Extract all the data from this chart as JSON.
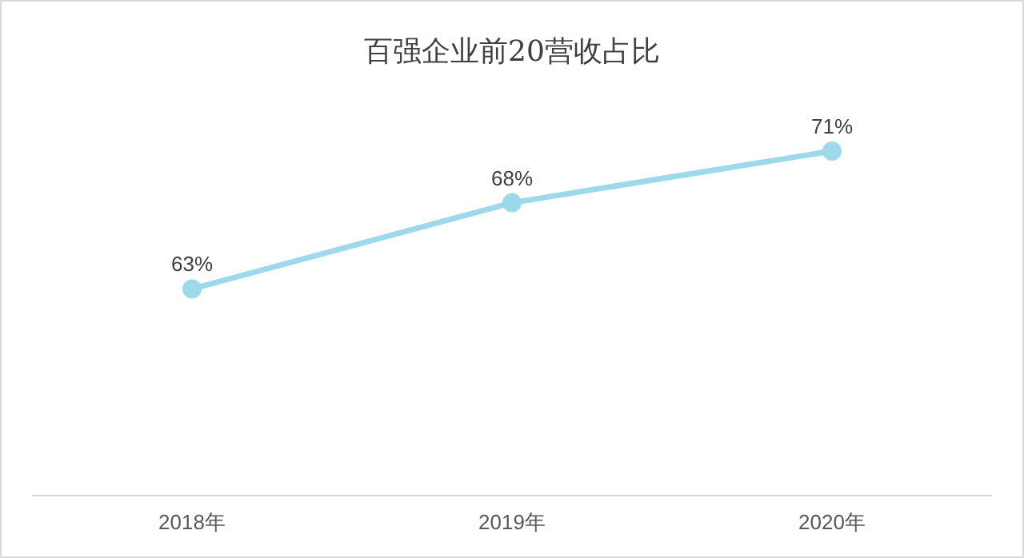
{
  "chart_data": {
    "type": "line",
    "title": "百强企业前20营收占比",
    "categories": [
      "2018年",
      "2019年",
      "2020年"
    ],
    "series": [
      {
        "color": "#9dd9ea",
        "values": [
          63,
          68,
          71
        ],
        "value_labels": [
          "63%",
          "68%",
          "71%"
        ]
      }
    ],
    "marker": "circle",
    "line_style": "solid"
  }
}
